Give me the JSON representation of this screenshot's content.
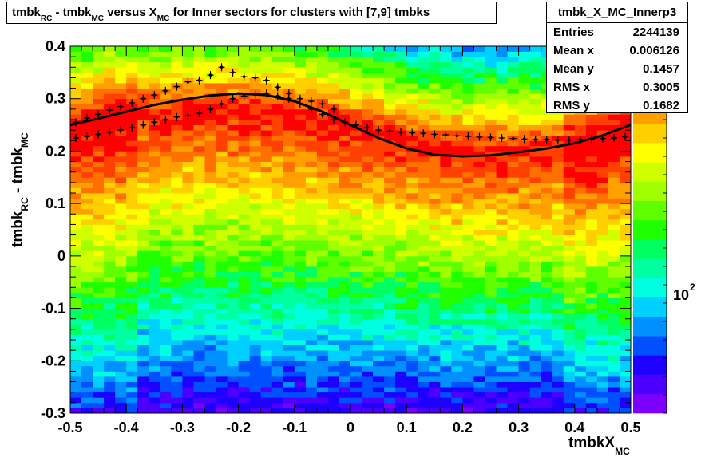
{
  "title": {
    "part1": "tmbk",
    "sub1": "RC",
    "part2": " - tmbk",
    "sub2": "MC",
    "part3": " versus X",
    "sub3": "MC",
    "part4": " for Inner sectors for clusters with [7,9] tmbks"
  },
  "stats": {
    "name": "tmbk_X_MC_Innerp3",
    "rows": [
      {
        "label": "Entries",
        "value": "2244139"
      },
      {
        "label": "Mean x",
        "value": "0.006126"
      },
      {
        "label": "Mean y",
        "value": "0.1457"
      },
      {
        "label": "RMS x",
        "value": "0.3005"
      },
      {
        "label": "RMS y",
        "value": "0.1682"
      }
    ]
  },
  "axis_labels": {
    "y_main": "tmbk",
    "y_sub1": "RC",
    "y_mid": " - tmbk",
    "y_sub2": "MC",
    "x_main": "tmbkX",
    "x_sub": "MC"
  },
  "colors": {
    "frame": "#000000",
    "background": "#ffffff",
    "palette": [
      "#7d00ff",
      "#4b00ff",
      "#1e00ff",
      "#0050ff",
      "#0090ff",
      "#00d0ff",
      "#00ffe0",
      "#00ffa0",
      "#00ff60",
      "#20ff00",
      "#60ff00",
      "#a0ff00",
      "#d0ff00",
      "#ffff00",
      "#ffd000",
      "#ffa000",
      "#ff7000",
      "#ff4000",
      "#ff0000"
    ]
  },
  "chart_data": {
    "type": "heatmap",
    "xlim": [
      -0.5,
      0.5
    ],
    "ylim": [
      -0.3,
      0.4
    ],
    "x_ticks": [
      -0.5,
      -0.4,
      -0.3,
      -0.2,
      -0.1,
      0,
      0.1,
      0.2,
      0.3,
      0.4,
      0.5
    ],
    "y_ticks": [
      -0.3,
      -0.2,
      -0.1,
      0,
      0.1,
      0.2,
      0.3,
      0.4
    ],
    "x_tick_labels": [
      "-0.5",
      "-0.4",
      "-0.3",
      "-0.2",
      "-0.1",
      "0",
      "0.1",
      "0.2",
      "0.3",
      "0.4",
      "0.5"
    ],
    "y_tick_labels": [
      "-0.3",
      "-0.2",
      "-0.1",
      "0",
      "0.1",
      "0.2",
      "0.3",
      "0.4"
    ],
    "nbins_x": 50,
    "nbins_y": 70,
    "z_scale": "log",
    "z_axis_label": "10",
    "z_axis_label_exp": "2",
    "ridge_profile": {
      "x": [
        -0.5,
        -0.4,
        -0.3,
        -0.2,
        -0.1,
        0,
        0.1,
        0.2,
        0.3,
        0.4,
        0.5
      ],
      "y": [
        0.24,
        0.27,
        0.28,
        0.28,
        0.27,
        0.25,
        0.22,
        0.2,
        0.2,
        0.21,
        0.24
      ]
    },
    "profile_upper": {
      "x": [
        -0.49,
        -0.47,
        -0.45,
        -0.43,
        -0.41,
        -0.39,
        -0.37,
        -0.35,
        -0.33,
        -0.31,
        -0.29,
        -0.27,
        -0.25,
        -0.23,
        -0.21,
        -0.19,
        -0.17,
        -0.15,
        -0.13,
        -0.11,
        -0.09,
        -0.07,
        -0.05,
        -0.03
      ],
      "y": [
        0.255,
        0.263,
        0.27,
        0.278,
        0.285,
        0.292,
        0.3,
        0.307,
        0.315,
        0.323,
        0.332,
        0.335,
        0.345,
        0.36,
        0.35,
        0.342,
        0.34,
        0.335,
        0.322,
        0.31,
        0.3,
        0.295,
        0.29,
        0.28
      ]
    },
    "profile_lower": {
      "x": [
        -0.49,
        -0.47,
        -0.45,
        -0.43,
        -0.41,
        -0.39,
        -0.37,
        -0.35,
        -0.33,
        -0.31,
        -0.29,
        -0.27,
        -0.25,
        -0.23,
        -0.21,
        -0.19,
        -0.17,
        -0.15,
        -0.13,
        -0.11,
        -0.09,
        -0.07,
        -0.05,
        -0.03,
        -0.01,
        0.01,
        0.03,
        0.05,
        0.07,
        0.09,
        0.11,
        0.13,
        0.15,
        0.17,
        0.19,
        0.21,
        0.23,
        0.25,
        0.27,
        0.29,
        0.31,
        0.33,
        0.35,
        0.37,
        0.39,
        0.41,
        0.43,
        0.45,
        0.47,
        0.49
      ],
      "y": [
        0.225,
        0.228,
        0.232,
        0.236,
        0.24,
        0.245,
        0.25,
        0.255,
        0.26,
        0.265,
        0.268,
        0.272,
        0.28,
        0.29,
        0.3,
        0.305,
        0.308,
        0.31,
        0.305,
        0.3,
        0.29,
        0.28,
        0.27,
        0.26,
        0.255,
        0.25,
        0.245,
        0.24,
        0.238,
        0.236,
        0.235,
        0.234,
        0.232,
        0.231,
        0.229,
        0.228,
        0.227,
        0.226,
        0.225,
        0.224,
        0.223,
        0.222,
        0.222,
        0.221,
        0.221,
        0.222,
        0.223,
        0.224,
        0.225,
        0.227
      ]
    },
    "fit_curve": {
      "x": [
        -0.5,
        -0.45,
        -0.4,
        -0.35,
        -0.3,
        -0.25,
        -0.2,
        -0.15,
        -0.1,
        -0.05,
        0,
        0.05,
        0.1,
        0.15,
        0.2,
        0.25,
        0.3,
        0.35,
        0.4,
        0.45,
        0.5
      ],
      "y": [
        0.25,
        0.262,
        0.275,
        0.288,
        0.298,
        0.306,
        0.31,
        0.307,
        0.295,
        0.275,
        0.25,
        0.225,
        0.205,
        0.193,
        0.19,
        0.192,
        0.198,
        0.205,
        0.215,
        0.23,
        0.25
      ]
    }
  }
}
